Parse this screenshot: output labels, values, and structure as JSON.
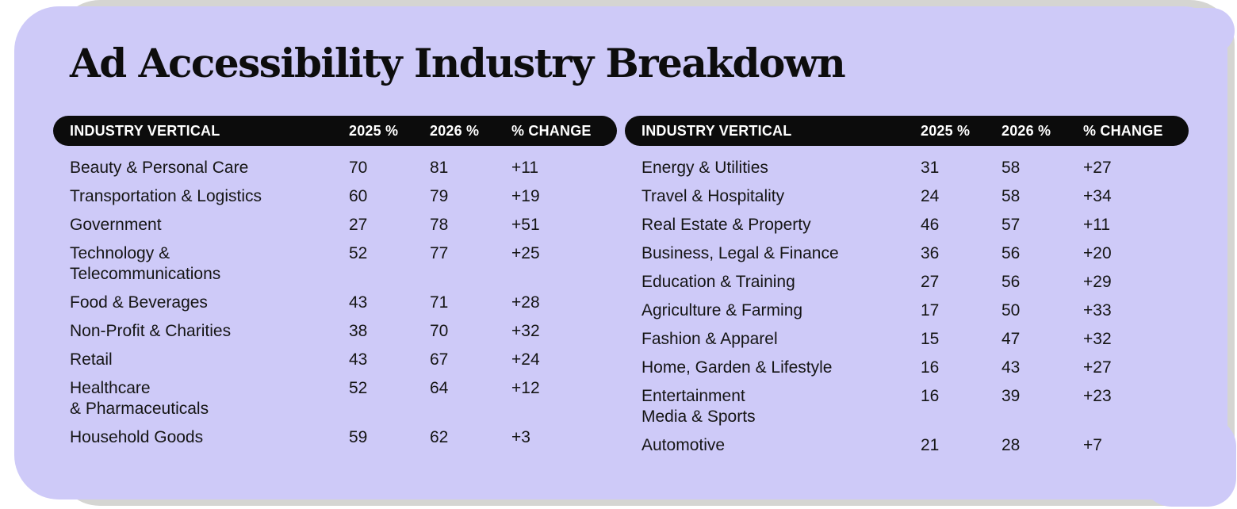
{
  "title": "Ad Accessibility Industry Breakdown",
  "columns": {
    "industry": "INDUSTRY VERTICAL",
    "y2025": "2025 %",
    "y2026": "2026 %",
    "change": "% CHANGE"
  },
  "colors": {
    "background": "#ffffff",
    "card_purple": "#cecaf8",
    "shadow_gray": "#d5d5d2",
    "pill_black": "#0c0c0c",
    "text": "#151515",
    "header_text": "#ffffff"
  },
  "chart_data": {
    "type": "table",
    "title": "Ad Accessibility Industry Breakdown",
    "columns": [
      "INDUSTRY VERTICAL",
      "2025 %",
      "2026 %",
      "% CHANGE"
    ],
    "tables": [
      {
        "rows": [
          {
            "label": "Beauty & Personal Care",
            "y2025": 70,
            "y2026": 81,
            "change": "+11"
          },
          {
            "label": "Transportation & Logistics",
            "y2025": 60,
            "y2026": 79,
            "change": "+19"
          },
          {
            "label": "Government",
            "y2025": 27,
            "y2026": 78,
            "change": "+51"
          },
          {
            "label": "Technology &\nTelecommunications",
            "y2025": 52,
            "y2026": 77,
            "change": "+25"
          },
          {
            "label": "Food & Beverages",
            "y2025": 43,
            "y2026": 71,
            "change": "+28"
          },
          {
            "label": "Non-Profit & Charities",
            "y2025": 38,
            "y2026": 70,
            "change": "+32"
          },
          {
            "label": "Retail",
            "y2025": 43,
            "y2026": 67,
            "change": "+24"
          },
          {
            "label": "Healthcare\n& Pharmaceuticals",
            "y2025": 52,
            "y2026": 64,
            "change": "+12"
          },
          {
            "label": "Household Goods",
            "y2025": 59,
            "y2026": 62,
            "change": "+3"
          }
        ]
      },
      {
        "rows": [
          {
            "label": "Energy & Utilities",
            "y2025": 31,
            "y2026": 58,
            "change": "+27"
          },
          {
            "label": "Travel & Hospitality",
            "y2025": 24,
            "y2026": 58,
            "change": "+34"
          },
          {
            "label": "Real Estate & Property",
            "y2025": 46,
            "y2026": 57,
            "change": "+11"
          },
          {
            "label": "Business, Legal & Finance",
            "y2025": 36,
            "y2026": 56,
            "change": "+20"
          },
          {
            "label": "Education & Training",
            "y2025": 27,
            "y2026": 56,
            "change": "+29"
          },
          {
            "label": "Agriculture & Farming",
            "y2025": 17,
            "y2026": 50,
            "change": "+33"
          },
          {
            "label": "Fashion & Apparel",
            "y2025": 15,
            "y2026": 47,
            "change": "+32"
          },
          {
            "label": "Home, Garden & Lifestyle",
            "y2025": 16,
            "y2026": 43,
            "change": "+27"
          },
          {
            "label": "Entertainment\nMedia & Sports",
            "y2025": 16,
            "y2026": 39,
            "change": "+23"
          },
          {
            "label": "Automotive",
            "y2025": 21,
            "y2026": 28,
            "change": "+7"
          }
        ]
      }
    ]
  }
}
